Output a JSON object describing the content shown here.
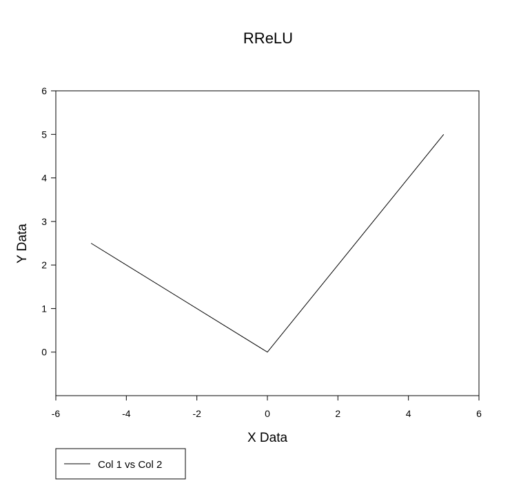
{
  "chart_data": {
    "type": "line",
    "title": "RReLU",
    "xlabel": "X Data",
    "ylabel": "Y Data",
    "xlim": [
      -6,
      6
    ],
    "ylim": [
      -1,
      6
    ],
    "xticks": [
      -6,
      -4,
      -2,
      0,
      2,
      4,
      6
    ],
    "yticks": [
      0,
      1,
      2,
      3,
      4,
      5,
      6
    ],
    "grid": false,
    "legend_position": "bottom-left",
    "series": [
      {
        "name": "Col 1 vs Col 2",
        "color": "#000000",
        "x": [
          -5,
          0,
          5
        ],
        "y": [
          2.5,
          0,
          5
        ]
      }
    ]
  }
}
